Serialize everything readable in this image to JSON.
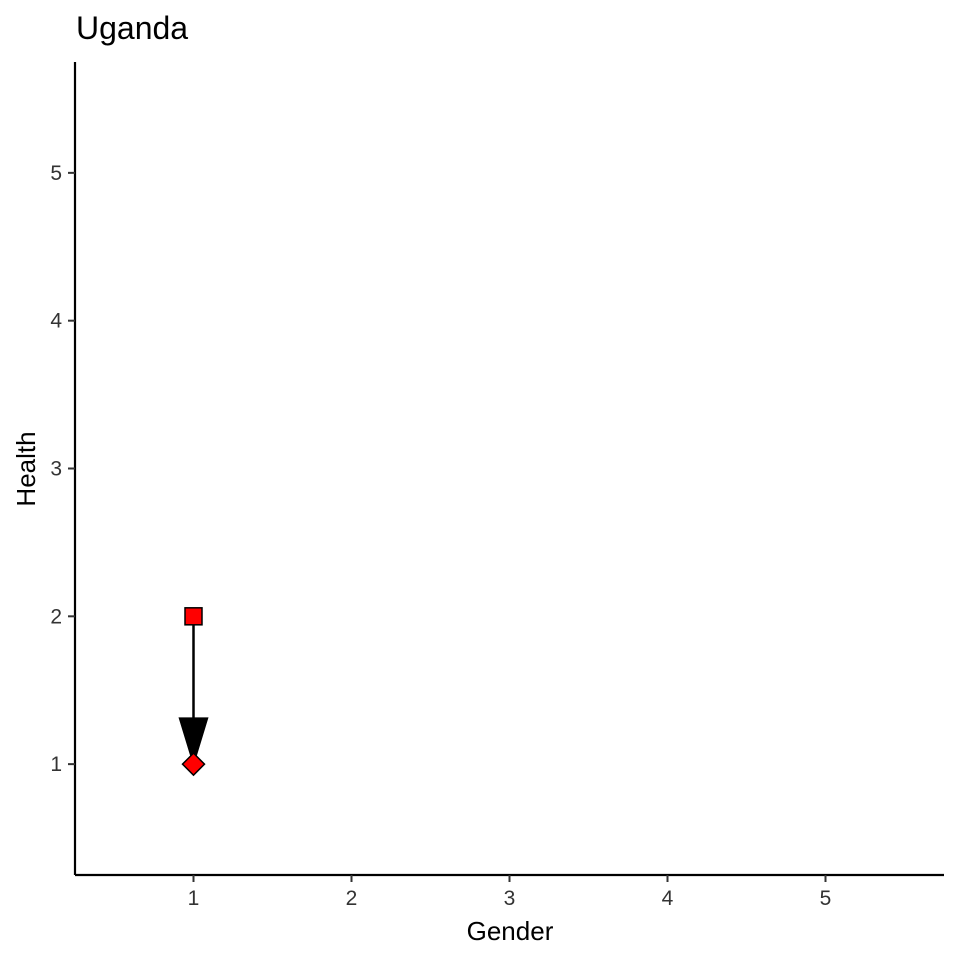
{
  "chart_data": {
    "type": "scatter",
    "title": "Uganda",
    "xlabel": "Gender",
    "ylabel": "Health",
    "xlim": [
      0.25,
      5.75
    ],
    "ylim": [
      0.25,
      5.75
    ],
    "x_ticks": [
      1,
      2,
      3,
      4,
      5
    ],
    "y_ticks": [
      1,
      2,
      3,
      4,
      5
    ],
    "grid": false,
    "points": [
      {
        "x": 1,
        "y": 2,
        "shape": "square",
        "color": "#ff0000"
      },
      {
        "x": 1,
        "y": 1,
        "shape": "diamond",
        "color": "#ff0000"
      }
    ],
    "arrows": [
      {
        "from": [
          1,
          2
        ],
        "to": [
          1,
          1
        ],
        "color": "#000000"
      }
    ]
  }
}
